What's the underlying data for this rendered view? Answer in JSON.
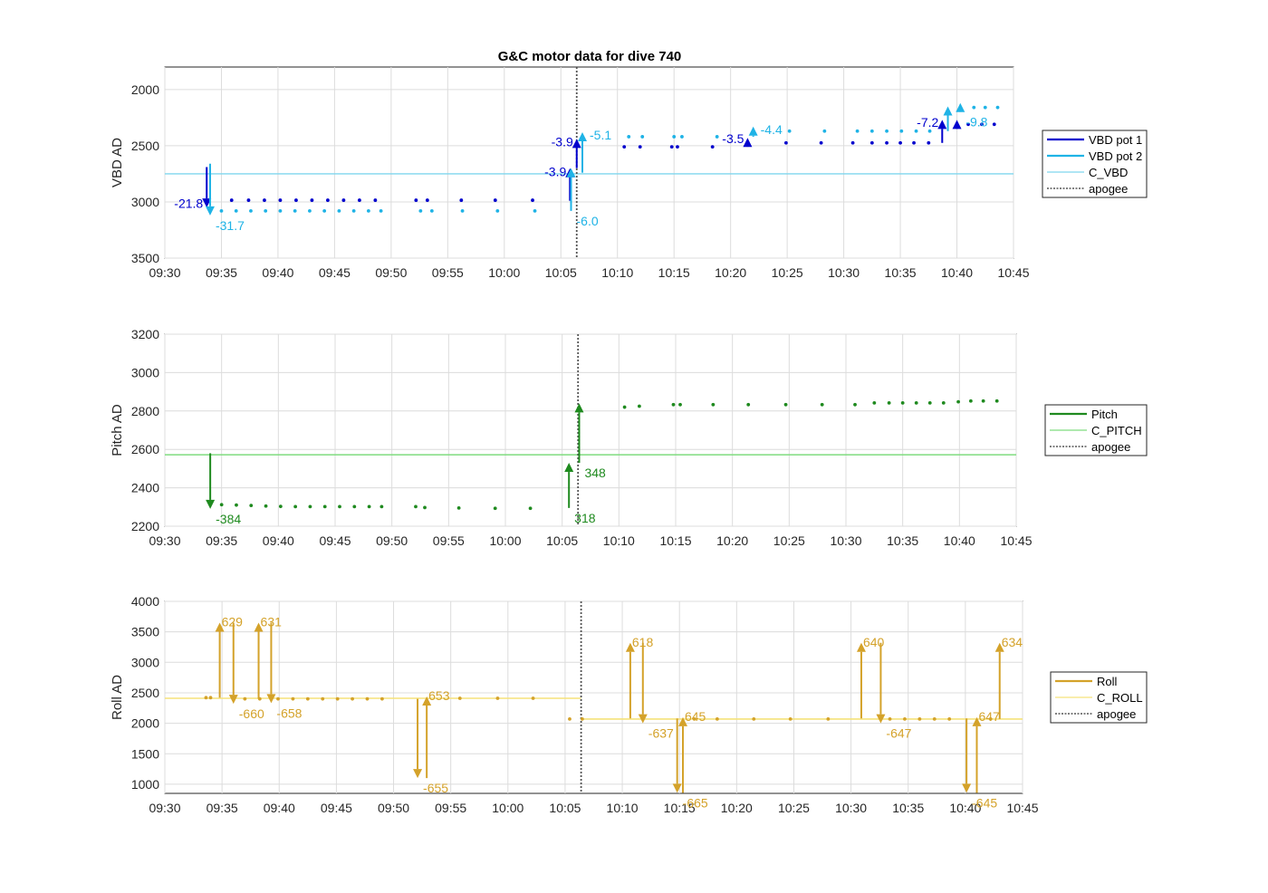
{
  "figure_title": "G&C motor data for dive 740",
  "chart_data": [
    {
      "type": "scatter",
      "title": "G&C motor data for dive 740",
      "ylabel": "VBD AD",
      "xlabel": "",
      "ylim": [
        3500,
        1800
      ],
      "y_reversed": true,
      "xlim": [
        "09:30",
        "10:45"
      ],
      "xticks": [
        "09:30",
        "09:35",
        "09:40",
        "09:45",
        "09:50",
        "09:55",
        "10:00",
        "10:05",
        "10:10",
        "10:15",
        "10:20",
        "10:25",
        "10:30",
        "10:35",
        "10:40",
        "10:45"
      ],
      "yticks": [
        2000,
        2500,
        3000,
        3500
      ],
      "grid": true,
      "legend_position": "outside-right",
      "series": [
        {
          "name": "VBD pot 1",
          "color": "#0000cd",
          "marker": "dot",
          "points": [
            [
              "09:33.9",
              2985
            ],
            [
              "09:35.9",
              2985
            ],
            [
              "09:37.4",
              2985
            ],
            [
              "09:38.8",
              2985
            ],
            [
              "09:40.2",
              2985
            ],
            [
              "09:41.6",
              2985
            ],
            [
              "09:43.0",
              2985
            ],
            [
              "09:44.4",
              2985
            ],
            [
              "09:45.8",
              2985
            ],
            [
              "09:47.2",
              2985
            ],
            [
              "09:48.6",
              2985
            ],
            [
              "09:52.2",
              2985
            ],
            [
              "09:53.2",
              2985
            ],
            [
              "09:56.2",
              2985
            ],
            [
              "09:59.2",
              2985
            ],
            [
              "10:02.5",
              2985
            ],
            [
              "10:10.6",
              2510
            ],
            [
              "10:12.0",
              2510
            ],
            [
              "10:14.8",
              2510
            ],
            [
              "10:15.3",
              2510
            ],
            [
              "10:18.4",
              2510
            ],
            [
              "10:24.9",
              2475
            ],
            [
              "10:28.0",
              2475
            ],
            [
              "10:30.8",
              2475
            ],
            [
              "10:32.5",
              2475
            ],
            [
              "10:33.8",
              2475
            ],
            [
              "10:35.0",
              2475
            ],
            [
              "10:36.2",
              2475
            ],
            [
              "10:37.5",
              2475
            ],
            [
              "10:41.0",
              2310
            ],
            [
              "10:42.2",
              2310
            ],
            [
              "10:43.3",
              2310
            ]
          ]
        },
        {
          "name": "VBD pot 2",
          "color": "#1fb3e6",
          "marker": "dot",
          "points": [
            [
              "09:35.0",
              3080
            ],
            [
              "09:36.3",
              3080
            ],
            [
              "09:37.6",
              3080
            ],
            [
              "09:38.9",
              3080
            ],
            [
              "09:40.2",
              3080
            ],
            [
              "09:41.5",
              3080
            ],
            [
              "09:42.8",
              3080
            ],
            [
              "09:44.1",
              3080
            ],
            [
              "09:45.4",
              3080
            ],
            [
              "09:46.7",
              3080
            ],
            [
              "09:48.0",
              3080
            ],
            [
              "09:49.1",
              3080
            ],
            [
              "09:52.6",
              3080
            ],
            [
              "09:53.6",
              3080
            ],
            [
              "09:56.3",
              3080
            ],
            [
              "09:59.4",
              3080
            ],
            [
              "10:02.7",
              3080
            ],
            [
              "10:11.0",
              2420
            ],
            [
              "10:12.2",
              2420
            ],
            [
              "10:15.0",
              2420
            ],
            [
              "10:15.7",
              2420
            ],
            [
              "10:18.8",
              2420
            ],
            [
              "10:25.2",
              2370
            ],
            [
              "10:28.3",
              2370
            ],
            [
              "10:31.2",
              2370
            ],
            [
              "10:32.5",
              2370
            ],
            [
              "10:33.8",
              2370
            ],
            [
              "10:35.1",
              2370
            ],
            [
              "10:36.4",
              2370
            ],
            [
              "10:37.6",
              2370
            ],
            [
              "10:41.5",
              2160
            ],
            [
              "10:42.5",
              2160
            ],
            [
              "10:43.6",
              2160
            ]
          ]
        },
        {
          "name": "C_VBD",
          "color": "#7fd6ee",
          "line": "solid",
          "y": 2750
        },
        {
          "name": "apogee",
          "color": "#555555",
          "line": "dotted",
          "x": "10:06.4"
        }
      ],
      "annotations": [
        {
          "x": "09:33.7",
          "from": 2690,
          "to": 3050,
          "text": "-21.8",
          "series": "VBD pot 1",
          "label_side": "left"
        },
        {
          "x": "09:34.0",
          "from": 2660,
          "to": 3120,
          "text": "-31.7",
          "series": "VBD pot 2",
          "label_side": "right-below"
        },
        {
          "x": "10:05.8",
          "from": 2990,
          "to": 2700,
          "text": "-3.9",
          "series": "VBD pot 1",
          "label_side": "left"
        },
        {
          "x": "10:05.9",
          "from": 3080,
          "to": 2700,
          "text": "-6.0",
          "series": "VBD pot 2",
          "label_side": "right-below"
        },
        {
          "x": "10:06.4",
          "from": 2700,
          "to": 2440,
          "text": "-3.9",
          "series": "VBD pot 1",
          "label_side": "left"
        },
        {
          "x": "10:06.9",
          "from": 2740,
          "to": 2380,
          "text": "-5.1",
          "series": "VBD pot 2",
          "label_side": "right"
        },
        {
          "x": "10:21.5",
          "from": 2510,
          "to": 2430,
          "text": "-3.5",
          "series": "VBD pot 1",
          "label_side": "left"
        },
        {
          "x": "10:22.0",
          "from": 2420,
          "to": 2330,
          "text": "-4.4",
          "series": "VBD pot 2",
          "label_side": "right"
        },
        {
          "x": "10:38.7",
          "from": 2475,
          "to": 2270,
          "text": "-7.2",
          "series": "VBD pot 1",
          "label_side": "left"
        },
        {
          "x": "10:39.2",
          "from": 2370,
          "to": 2150,
          "text": "",
          "series": "VBD pot 2",
          "label_side": "none"
        },
        {
          "x": "10:40.0",
          "from": 2340,
          "to": 2270,
          "text": "",
          "series": "VBD pot 1",
          "label_side": "none"
        },
        {
          "x": "10:40.3",
          "from": 2200,
          "to": 2120,
          "text": "-9.8",
          "series": "VBD pot 2",
          "label_side": "right-below"
        }
      ]
    },
    {
      "type": "scatter",
      "title": "",
      "ylabel": "Pitch AD",
      "xlabel": "",
      "ylim": [
        2200,
        3200
      ],
      "xlim": [
        "09:30",
        "10:45"
      ],
      "xticks": [
        "09:30",
        "09:35",
        "09:40",
        "09:45",
        "09:50",
        "09:55",
        "10:00",
        "10:05",
        "10:10",
        "10:15",
        "10:20",
        "10:25",
        "10:30",
        "10:35",
        "10:40",
        "10:45"
      ],
      "yticks": [
        2200,
        2400,
        2600,
        2800,
        3000,
        3200
      ],
      "grid": true,
      "legend_position": "outside-right",
      "series": [
        {
          "name": "Pitch",
          "color": "#1f8a1f",
          "marker": "dot",
          "points": [
            [
              "09:35.0",
              2312
            ],
            [
              "09:36.3",
              2310
            ],
            [
              "09:37.6",
              2308
            ],
            [
              "09:38.9",
              2305
            ],
            [
              "09:40.2",
              2303
            ],
            [
              "09:41.5",
              2302
            ],
            [
              "09:42.8",
              2302
            ],
            [
              "09:44.1",
              2302
            ],
            [
              "09:45.4",
              2302
            ],
            [
              "09:46.7",
              2302
            ],
            [
              "09:48.0",
              2302
            ],
            [
              "09:49.1",
              2302
            ],
            [
              "09:52.1",
              2302
            ],
            [
              "09:52.9",
              2297
            ],
            [
              "09:55.9",
              2295
            ],
            [
              "09:59.1",
              2293
            ],
            [
              "10:02.2",
              2293
            ],
            [
              "10:10.5",
              2820
            ],
            [
              "10:11.8",
              2825
            ],
            [
              "10:14.8",
              2833
            ],
            [
              "10:15.4",
              2833
            ],
            [
              "10:18.3",
              2833
            ],
            [
              "10:21.4",
              2833
            ],
            [
              "10:24.7",
              2833
            ],
            [
              "10:27.9",
              2833
            ],
            [
              "10:30.8",
              2833
            ],
            [
              "10:32.5",
              2842
            ],
            [
              "10:33.8",
              2842
            ],
            [
              "10:35.0",
              2842
            ],
            [
              "10:36.2",
              2842
            ],
            [
              "10:37.4",
              2842
            ],
            [
              "10:38.6",
              2842
            ],
            [
              "10:39.9",
              2848
            ],
            [
              "10:41.0",
              2852
            ],
            [
              "10:42.1",
              2852
            ],
            [
              "10:43.3",
              2852
            ]
          ]
        },
        {
          "name": "C_PITCH",
          "color": "#7fdc7f",
          "line": "solid",
          "y": 2572
        },
        {
          "name": "apogee",
          "color": "#555555",
          "line": "dotted",
          "x": "10:06.4"
        }
      ],
      "annotations": [
        {
          "x": "09:34.0",
          "from": 2580,
          "to": 2290,
          "text": "-384",
          "series": "Pitch",
          "label_side": "right-below"
        },
        {
          "x": "10:05.6",
          "from": 2295,
          "to": 2530,
          "text": "318",
          "series": "Pitch",
          "label_side": "right-below"
        },
        {
          "x": "10:06.5",
          "from": 2530,
          "to": 2840,
          "text": "348",
          "series": "Pitch",
          "label_side": "right-below"
        }
      ]
    },
    {
      "type": "scatter",
      "title": "",
      "ylabel": "Roll AD",
      "xlabel": "",
      "ylim": [
        850,
        4000
      ],
      "xlim": [
        "09:30",
        "10:45"
      ],
      "xticks": [
        "09:30",
        "09:35",
        "09:40",
        "09:45",
        "09:50",
        "09:55",
        "10:00",
        "10:05",
        "10:10",
        "10:15",
        "10:20",
        "10:25",
        "10:30",
        "10:35",
        "10:40",
        "10:45"
      ],
      "yticks": [
        1000,
        1500,
        2000,
        2500,
        3000,
        3500,
        4000
      ],
      "grid": true,
      "legend_position": "outside-right",
      "series": [
        {
          "name": "Roll",
          "color": "#d4a22a",
          "marker": "dot",
          "points": [
            [
              "09:33.6",
              2420
            ],
            [
              "09:34.0",
              2420
            ],
            [
              "09:37.0",
              2400
            ],
            [
              "09:38.3",
              2400
            ],
            [
              "09:39.9",
              2400
            ],
            [
              "09:41.2",
              2400
            ],
            [
              "09:42.5",
              2400
            ],
            [
              "09:43.8",
              2400
            ],
            [
              "09:45.1",
              2400
            ],
            [
              "09:46.4",
              2400
            ],
            [
              "09:47.7",
              2400
            ],
            [
              "09:49.0",
              2400
            ],
            [
              "09:55.8",
              2410
            ],
            [
              "09:59.1",
              2410
            ],
            [
              "10:02.2",
              2410
            ],
            [
              "10:05.4",
              2070
            ],
            [
              "10:06.5",
              2070
            ],
            [
              "10:16.3",
              2070
            ],
            [
              "10:18.3",
              2070
            ],
            [
              "10:21.5",
              2070
            ],
            [
              "10:24.7",
              2070
            ],
            [
              "10:28.0",
              2070
            ],
            [
              "10:33.4",
              2070
            ],
            [
              "10:34.7",
              2070
            ],
            [
              "10:36.0",
              2070
            ],
            [
              "10:37.3",
              2070
            ],
            [
              "10:38.6",
              2070
            ],
            [
              "10:42.2",
              2070
            ]
          ]
        },
        {
          "name": "C_ROLL",
          "color": "#f5e27a",
          "line": "solid",
          "segments": [
            [
              "09:30",
              "10:06.4",
              2410
            ],
            [
              "10:06.4",
              "10:45",
              2070
            ]
          ]
        },
        {
          "name": "apogee",
          "color": "#555555",
          "line": "dotted",
          "x": "10:06.4"
        }
      ],
      "annotations": [
        {
          "x": "09:34.8",
          "from": 2420,
          "to": 3650,
          "text": "629",
          "series": "Roll",
          "label_side": "right-above"
        },
        {
          "x": "09:36.0",
          "from": 3650,
          "to": 2320,
          "text": "-660",
          "series": "Roll",
          "label_side": "right-below"
        },
        {
          "x": "09:38.2",
          "from": 2400,
          "to": 3650,
          "text": "631",
          "series": "Roll",
          "label_side": "right-above"
        },
        {
          "x": "09:39.3",
          "from": 3650,
          "to": 2330,
          "text": "-658",
          "series": "Roll",
          "label_side": "right-below"
        },
        {
          "x": "09:52.1",
          "from": 2400,
          "to": 1100,
          "text": "-655",
          "series": "Roll",
          "label_side": "right-below"
        },
        {
          "x": "09:52.9",
          "from": 1100,
          "to": 2440,
          "text": "653",
          "series": "Roll",
          "label_side": "right-above"
        },
        {
          "x": "10:10.7",
          "from": 2080,
          "to": 3320,
          "text": "618",
          "series": "Roll",
          "label_side": "right-above"
        },
        {
          "x": "10:11.8",
          "from": 3320,
          "to": 2000,
          "text": "-637",
          "series": "Roll",
          "label_side": "right-below"
        },
        {
          "x": "10:14.8",
          "from": 2080,
          "to": 860,
          "text": "-665",
          "series": "Roll",
          "label_side": "right-below"
        },
        {
          "x": "10:15.3",
          "from": 860,
          "to": 2100,
          "text": "645",
          "series": "Roll",
          "label_side": "right-above"
        },
        {
          "x": "10:30.9",
          "from": 2080,
          "to": 3320,
          "text": "640",
          "series": "Roll",
          "label_side": "right-above"
        },
        {
          "x": "10:32.6",
          "from": 3320,
          "to": 2000,
          "text": "-647",
          "series": "Roll",
          "label_side": "right-below"
        },
        {
          "x": "10:40.1",
          "from": 2080,
          "to": 860,
          "text": "-645",
          "series": "Roll",
          "label_side": "right-below"
        },
        {
          "x": "10:41.0",
          "from": 860,
          "to": 2100,
          "text": "647",
          "series": "Roll",
          "label_side": "right-above"
        },
        {
          "x": "10:43.0",
          "from": 2070,
          "to": 3320,
          "text": "634",
          "series": "Roll",
          "label_side": "right-above"
        }
      ]
    }
  ]
}
